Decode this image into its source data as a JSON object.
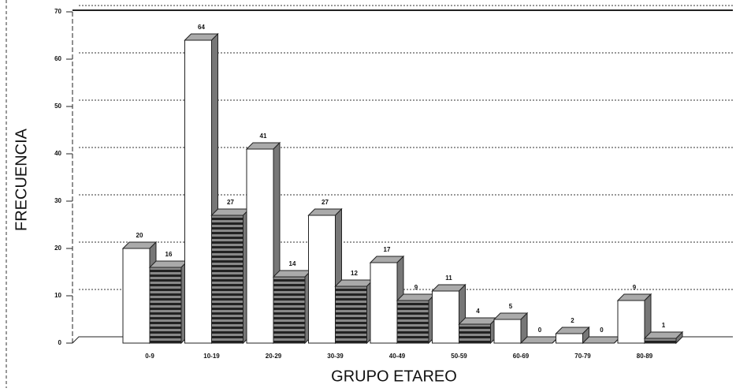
{
  "chart_data": {
    "type": "bar3d",
    "xlabel": "GRUPO ETAREO",
    "ylabel": "FRECUENCIA",
    "categories": [
      "0-9",
      "10-19",
      "20-29",
      "30-39",
      "40-49",
      "50-59",
      "60-69",
      "70-79",
      "80-89"
    ],
    "series": [
      {
        "color": "#ffffff",
        "values": [
          20,
          64,
          41,
          27,
          17,
          11,
          5,
          2,
          9
        ]
      },
      {
        "color": "#2e2e2e",
        "values": [
          16,
          27,
          14,
          12,
          9,
          4,
          0,
          0,
          1
        ]
      }
    ],
    "ylim": [
      0,
      70
    ],
    "yticks": [
      0,
      10,
      20,
      30,
      40,
      50,
      60,
      70
    ],
    "grid": true
  }
}
